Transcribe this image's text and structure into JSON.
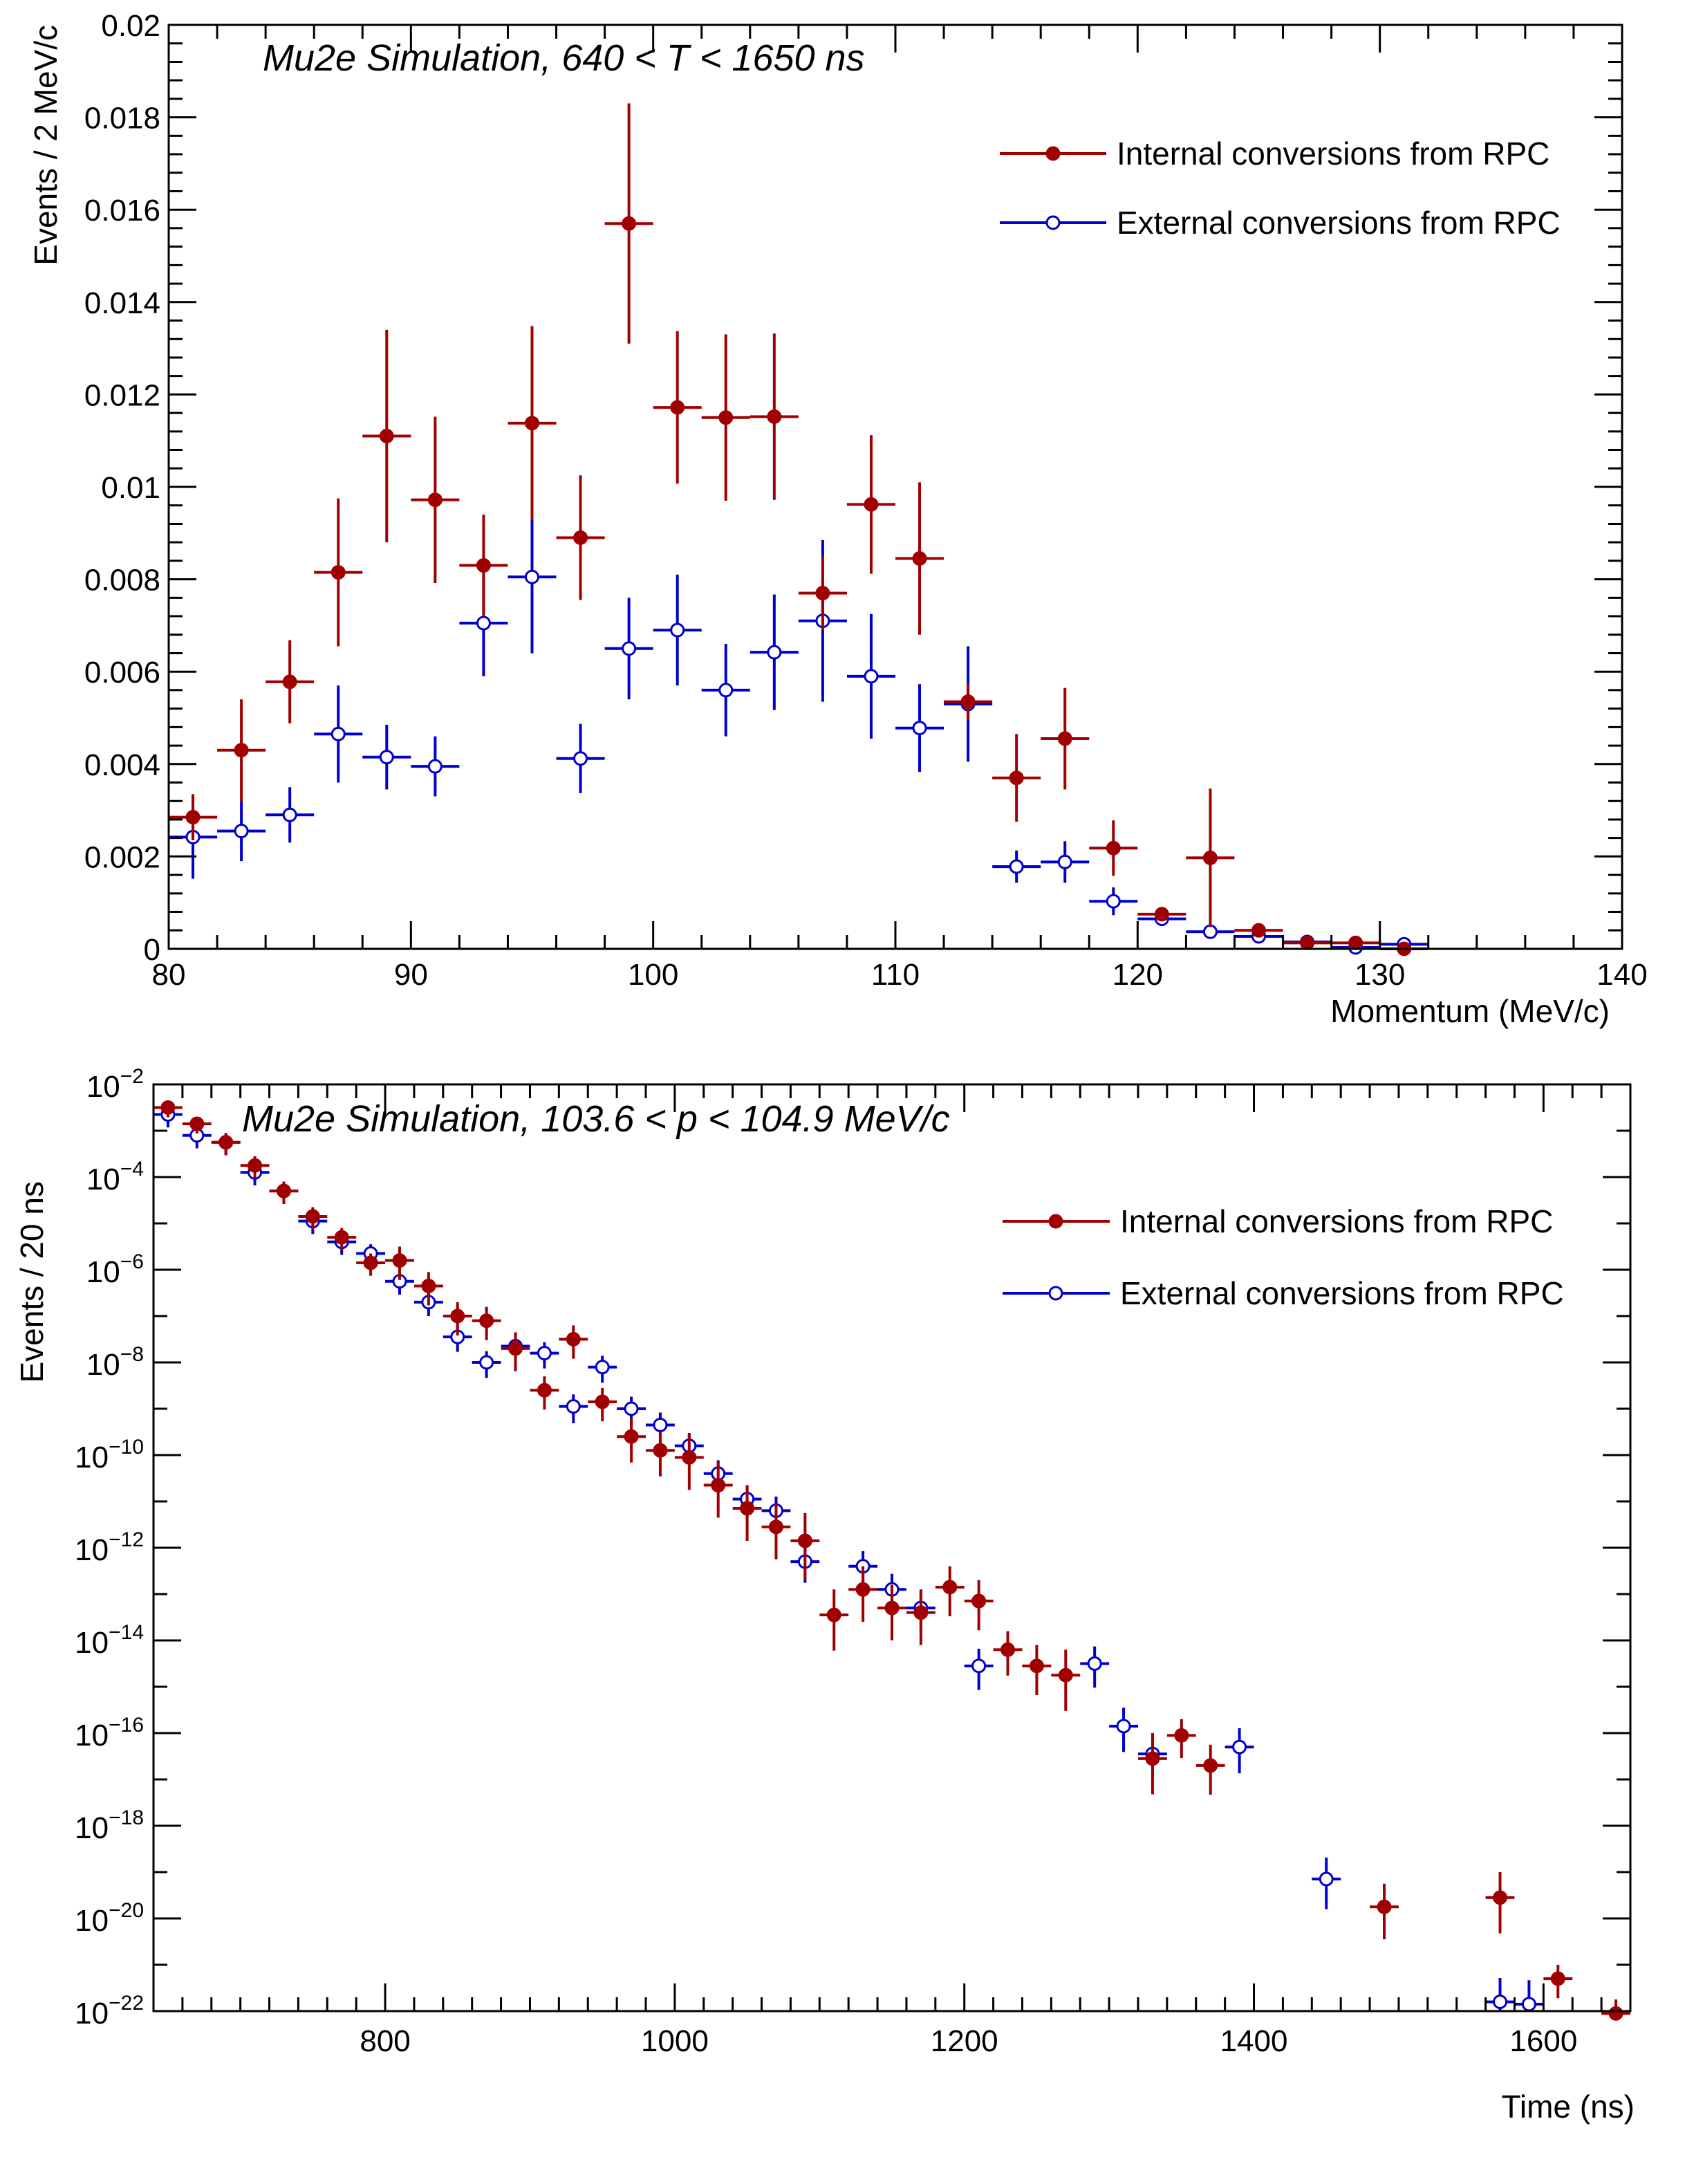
{
  "chart_data": [
    {
      "type": "scatter",
      "title": "Mu2e Simulation, 640 < T < 1650 ns",
      "xlabel": "Momentum (MeV/c)",
      "ylabel": "Events / 2 MeV/c",
      "xlim": [
        80,
        140
      ],
      "ylim": [
        0,
        0.02
      ],
      "yscale": "linear",
      "x_bin_width": 2,
      "x_ticks": [
        80,
        90,
        100,
        110,
        120,
        130,
        140
      ],
      "x_tick_labels": [
        "80",
        "90",
        "100",
        "110",
        "120",
        "130",
        "140"
      ],
      "y_ticks": [
        0,
        0.002,
        0.004,
        0.006,
        0.008,
        0.01,
        0.012,
        0.014,
        0.016,
        0.018,
        0.02
      ],
      "y_tick_labels": [
        "0",
        "0.002",
        "0.004",
        "0.006",
        "0.008",
        "0.01",
        "0.012",
        "0.014",
        "0.016",
        "0.018",
        "0.02"
      ],
      "legend": "top-right",
      "series": [
        {
          "name": "Internal conversions from RPC",
          "color": "#a00000",
          "marker": "filled-circle",
          "x": [
            81,
            83,
            85,
            87,
            89,
            91,
            93,
            95,
            97,
            99,
            101,
            103,
            105,
            107,
            109,
            111,
            113,
            115,
            117,
            119,
            121,
            123,
            125,
            127,
            129,
            131
          ],
          "y": [
            0.00285,
            0.0043,
            0.00578,
            0.00815,
            0.0111,
            0.00972,
            0.0083,
            0.01138,
            0.0089,
            0.0157,
            0.01172,
            0.0115,
            0.01152,
            0.0077,
            0.00962,
            0.00845,
            0.00535,
            0.0037,
            0.00455,
            0.00218,
            0.00075,
            0.00197,
            0.0004,
            0.00013,
            0.00013,
            0.0
          ],
          "err": [
            0.0005,
            0.0011,
            0.0009,
            0.0016,
            0.0023,
            0.0018,
            0.0011,
            0.0021,
            0.00135,
            0.0026,
            0.00165,
            0.0018,
            0.0018,
            0.0008,
            0.0015,
            0.00165,
            0.0004,
            0.00095,
            0.0011,
            0.0006,
            8e-05,
            0.0015,
            8e-05,
            4e-05,
            4e-05,
            2e-05
          ]
        },
        {
          "name": "External conversions from RPC",
          "color": "#0000cc",
          "marker": "open-circle",
          "x": [
            81,
            83,
            85,
            87,
            89,
            91,
            93,
            95,
            97,
            99,
            101,
            103,
            105,
            107,
            109,
            111,
            113,
            115,
            117,
            119,
            121,
            123,
            125,
            127,
            129,
            131
          ],
          "y": [
            0.00242,
            0.00255,
            0.0029,
            0.00465,
            0.00415,
            0.00395,
            0.00705,
            0.00805,
            0.00412,
            0.0065,
            0.0069,
            0.0056,
            0.00642,
            0.0071,
            0.0059,
            0.00478,
            0.0053,
            0.00178,
            0.00188,
            0.00103,
            0.00065,
            0.00037,
            0.00027,
            0.00015,
            3e-05,
            0.0001
          ],
          "err": [
            0.0009,
            0.00065,
            0.0006,
            0.00105,
            0.0007,
            0.00065,
            0.00115,
            0.00165,
            0.00075,
            0.0011,
            0.0012,
            0.001,
            0.00125,
            0.00175,
            0.00135,
            0.00095,
            0.00125,
            0.00035,
            0.00045,
            0.0003,
            0.00015,
            8e-05,
            5e-05,
            4e-05,
            2e-05,
            3e-05
          ]
        }
      ]
    },
    {
      "type": "scatter",
      "title": "Mu2e Simulation, 103.6 < p < 104.9 MeV/c",
      "xlabel": "Time (ns)",
      "ylabel": "Events / 20 ns",
      "xlim": [
        640,
        1660
      ],
      "ylim_exp": [
        -22,
        -2
      ],
      "yscale": "log",
      "x_bin_width": 20,
      "x_ticks": [
        800,
        1000,
        1200,
        1400,
        1600
      ],
      "x_tick_labels": [
        "800",
        "1000",
        "1200",
        "1400",
        "1600"
      ],
      "y_tick_base": "10",
      "y_tick_exponents": [
        "−2",
        "−4",
        "−6",
        "−8",
        "−10",
        "−12",
        "−14",
        "−16",
        "−18",
        "−20",
        "−22"
      ],
      "legend": "top-right",
      "series": [
        {
          "name": "Internal conversions from RPC",
          "color": "#a00000",
          "marker": "filled-circle",
          "x": [
            650,
            670,
            690,
            710,
            730,
            750,
            770,
            790,
            810,
            830,
            850,
            870,
            890,
            910,
            930,
            950,
            970,
            990,
            1010,
            1030,
            1050,
            1070,
            1090,
            1110,
            1130,
            1150,
            1170,
            1190,
            1210,
            1230,
            1250,
            1270,
            1330,
            1350,
            1370,
            1490,
            1570,
            1610,
            1650
          ],
          "log10_y": [
            -2.5,
            -2.85,
            -3.25,
            -3.75,
            -4.3,
            -4.85,
            -5.3,
            -5.85,
            -5.8,
            -6.35,
            -7.0,
            -7.1,
            -7.7,
            -8.6,
            -7.5,
            -8.85,
            -9.6,
            -9.9,
            -10.05,
            -10.65,
            -11.15,
            -11.55,
            -11.85,
            -13.45,
            -12.9,
            -13.3,
            -13.4,
            -12.85,
            -13.15,
            -14.2,
            -14.55,
            -14.75,
            -16.55,
            -16.05,
            -16.7,
            -19.75,
            -19.55,
            -21.3,
            -22.05
          ],
          "log10_err": [
            0.15,
            0.15,
            0.2,
            0.2,
            0.2,
            0.2,
            0.2,
            0.2,
            0.3,
            0.3,
            0.3,
            0.3,
            0.35,
            0.3,
            0.3,
            0.3,
            0.4,
            0.4,
            0.5,
            0.5,
            0.5,
            0.5,
            0.6,
            0.55,
            0.5,
            0.5,
            0.5,
            0.45,
            0.45,
            0.4,
            0.45,
            0.55,
            0.55,
            0.35,
            0.45,
            0.5,
            0.55,
            0.3,
            0.3
          ]
        },
        {
          "name": "External conversions from RPC",
          "color": "#0000cc",
          "marker": "open-circle",
          "x": [
            650,
            670,
            690,
            710,
            730,
            750,
            770,
            790,
            810,
            830,
            850,
            870,
            890,
            910,
            930,
            950,
            970,
            990,
            1010,
            1030,
            1050,
            1070,
            1090,
            1130,
            1150,
            1170,
            1210,
            1290,
            1310,
            1330,
            1390,
            1450,
            1570,
            1590
          ],
          "log10_y": [
            -2.65,
            -3.1,
            -3.25,
            -3.9,
            -4.3,
            -4.95,
            -5.4,
            -5.65,
            -6.25,
            -6.7,
            -7.45,
            -8.0,
            -7.65,
            -7.8,
            -8.95,
            -8.1,
            -9.0,
            -9.35,
            -9.8,
            -10.4,
            -10.95,
            -11.2,
            -12.3,
            -12.4,
            -12.9,
            -13.3,
            -14.55,
            -14.5,
            -15.85,
            -16.45,
            -16.3,
            -19.15,
            -21.8,
            -21.85
          ]
        }
      ]
    }
  ]
}
